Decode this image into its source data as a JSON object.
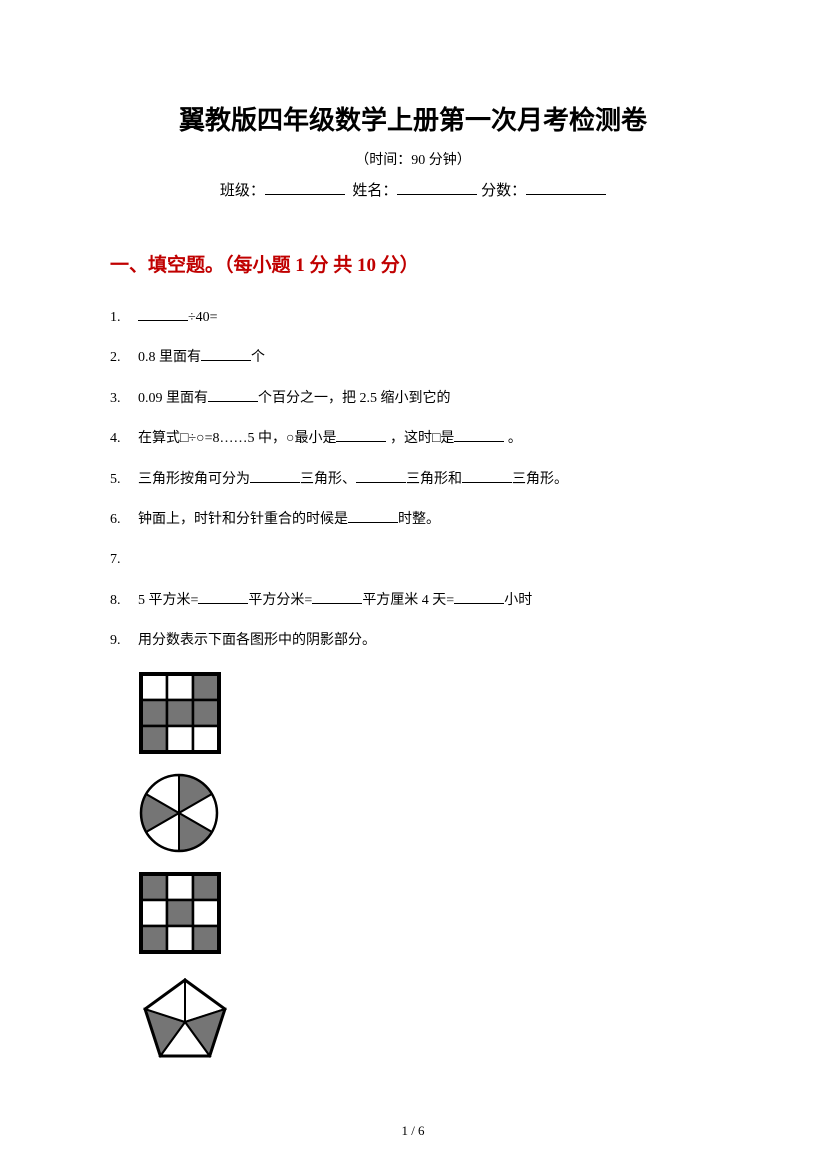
{
  "title": "翼教版四年级数学上册第一次月考检测卷",
  "subtitle": "（时间：90 分钟）",
  "info": {
    "class_label": "班级：",
    "name_label": "姓名：",
    "score_label": "分数："
  },
  "section1": {
    "heading": "一、填空题。（每小题 1 分  共 10 分）",
    "questions": [
      {
        "num": "1.",
        "text_parts": [
          "",
          "÷40="
        ]
      },
      {
        "num": "2.",
        "text_parts": [
          "0.8 里面有",
          "个"
        ]
      },
      {
        "num": "3.",
        "text_parts": [
          "0.09 里面有",
          "个百分之一，把 2.5 缩小到它的"
        ]
      },
      {
        "num": "4.",
        "text_parts": [
          "在算式□÷○=8……5 中，○最小是",
          " ，这时□是",
          " 。"
        ]
      },
      {
        "num": "5.",
        "text_parts": [
          "三角形按角可分为",
          "三角形、",
          "三角形和",
          "三角形。"
        ]
      },
      {
        "num": "6.",
        "text_parts": [
          "钟面上，时针和分针重合的时候是",
          "时整。"
        ]
      },
      {
        "num": "7.",
        "text_parts": [
          ""
        ]
      },
      {
        "num": "8.",
        "text_parts": [
          "5 平方米=",
          "平方分米=",
          "平方厘米  4 天=",
          "小时"
        ]
      },
      {
        "num": "9.",
        "text_parts": [
          "用分数表示下面各图形中的阴影部分。"
        ]
      }
    ]
  },
  "figures": {
    "grid3x3": {
      "type": "grid",
      "rows": 3,
      "cols": 3,
      "cell_size": 26,
      "background": "#ffffff",
      "line_color": "#000000",
      "shaded_color": "#757575",
      "shaded_cells": [
        [
          0,
          2
        ],
        [
          1,
          0
        ],
        [
          1,
          1
        ],
        [
          1,
          2
        ],
        [
          2,
          0
        ]
      ]
    },
    "pie": {
      "type": "pie",
      "radius": 38,
      "slices": 6,
      "line_color": "#000000",
      "background": "#ffffff",
      "shaded_color": "#757575",
      "shaded_slices": [
        0,
        2,
        4
      ]
    },
    "grid3x3b": {
      "type": "grid",
      "rows": 3,
      "cols": 3,
      "cell_size": 26,
      "background": "#ffffff",
      "line_color": "#000000",
      "shaded_color": "#757575",
      "shaded_cells": [
        [
          0,
          0
        ],
        [
          0,
          2
        ],
        [
          1,
          1
        ],
        [
          2,
          0
        ],
        [
          2,
          2
        ]
      ]
    },
    "pentagon": {
      "type": "pentagon",
      "size": 90,
      "line_color": "#000000",
      "background": "#ffffff",
      "shaded_color": "#757575",
      "shaded_triangles": [
        1,
        3
      ]
    }
  },
  "page_num": "1  /  6"
}
